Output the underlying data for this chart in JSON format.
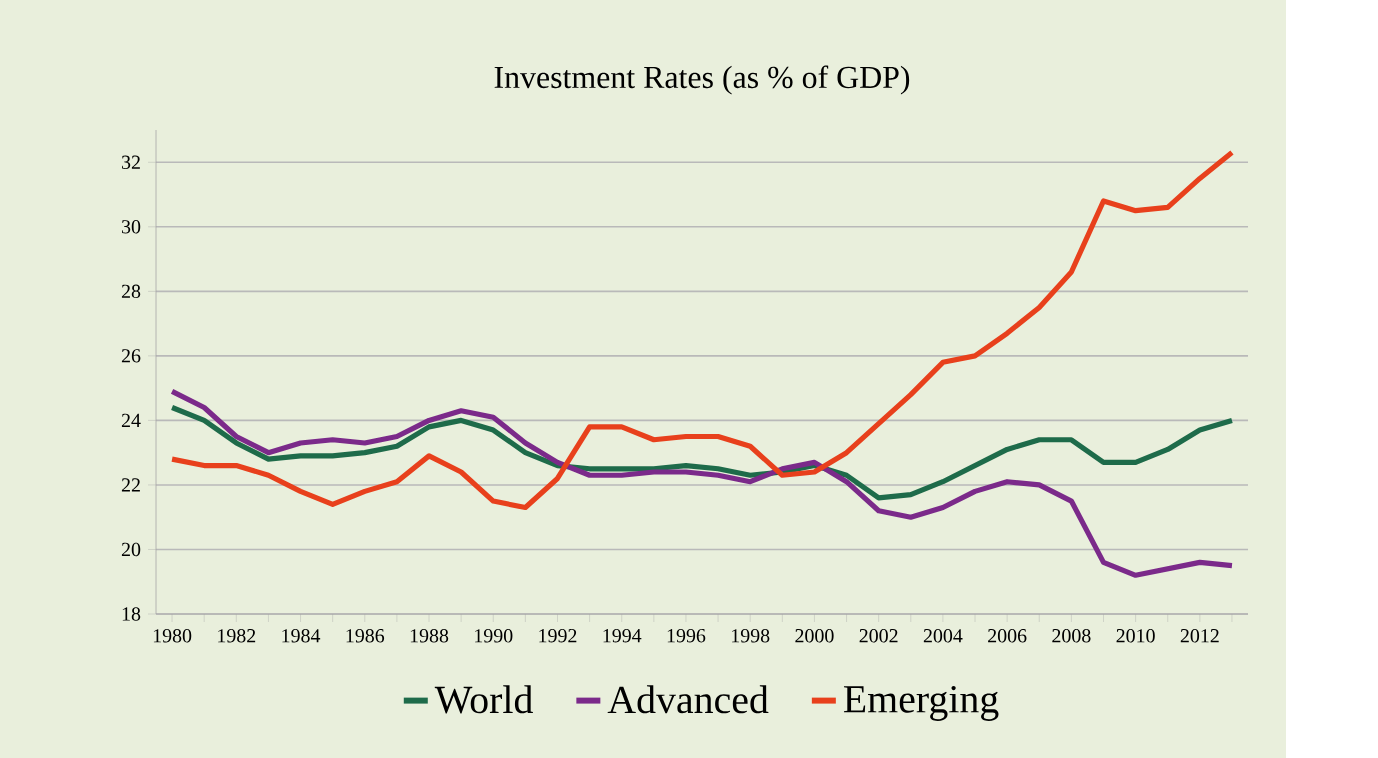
{
  "chart_data": {
    "type": "line",
    "title": "Investment Rates (as % of GDP)",
    "x": [
      1980,
      1981,
      1982,
      1983,
      1984,
      1985,
      1986,
      1987,
      1988,
      1989,
      1990,
      1991,
      1992,
      1993,
      1994,
      1995,
      1996,
      1997,
      1998,
      1999,
      2000,
      2001,
      2002,
      2003,
      2004,
      2005,
      2006,
      2007,
      2008,
      2009,
      2010,
      2011,
      2012,
      2013
    ],
    "series": [
      {
        "name": "World",
        "color": "#1e6b4a",
        "values": [
          24.4,
          24.0,
          23.3,
          22.8,
          22.9,
          22.9,
          23.0,
          23.2,
          23.8,
          24.0,
          23.7,
          23.0,
          22.6,
          22.5,
          22.5,
          22.5,
          22.6,
          22.5,
          22.3,
          22.4,
          22.6,
          22.3,
          21.6,
          21.7,
          22.1,
          22.6,
          23.1,
          23.4,
          23.4,
          22.7,
          22.7,
          23.1,
          23.7,
          24.0
        ]
      },
      {
        "name": "Advanced",
        "color": "#7b2a8a",
        "values": [
          24.9,
          24.4,
          23.5,
          23.0,
          23.3,
          23.4,
          23.3,
          23.5,
          24.0,
          24.3,
          24.1,
          23.3,
          22.7,
          22.3,
          22.3,
          22.4,
          22.4,
          22.3,
          22.1,
          22.5,
          22.7,
          22.1,
          21.2,
          21.0,
          21.3,
          21.8,
          22.1,
          22.0,
          21.5,
          19.6,
          19.2,
          19.4,
          19.6,
          19.5
        ]
      },
      {
        "name": "Emerging",
        "color": "#e8401c",
        "values": [
          22.8,
          22.6,
          22.6,
          22.3,
          21.8,
          21.4,
          21.8,
          22.1,
          22.9,
          22.4,
          21.5,
          21.3,
          22.2,
          23.8,
          23.8,
          23.4,
          23.5,
          23.5,
          23.2,
          22.3,
          22.4,
          23.0,
          23.9,
          24.8,
          25.8,
          26.0,
          26.7,
          27.5,
          28.6,
          30.8,
          30.5,
          30.6,
          31.5,
          32.3
        ]
      }
    ],
    "xlim": [
      1979.5,
      2013.5
    ],
    "xticks": [
      1980,
      {
        "value": 1981,
        "label": null
      },
      1982,
      {
        "value": 1983,
        "label": null
      },
      1984,
      {
        "value": 1985,
        "label": null
      },
      1986,
      {
        "value": 1987,
        "label": null
      },
      1988,
      {
        "value": 1989,
        "label": null
      },
      1990,
      {
        "value": 1991,
        "label": null
      },
      1992,
      {
        "value": 1993,
        "label": null
      },
      1994,
      {
        "value": 1995,
        "label": null
      },
      1996,
      {
        "value": 1997,
        "label": null
      },
      1998,
      {
        "value": 1999,
        "label": null
      },
      2000,
      {
        "value": 2001,
        "label": null
      },
      2002,
      {
        "value": 2003,
        "label": null
      },
      2004,
      {
        "value": 2005,
        "label": null
      },
      2006,
      {
        "value": 2007,
        "label": null
      },
      2008,
      {
        "value": 2009,
        "label": null
      },
      2010,
      {
        "value": 2011,
        "label": null
      },
      2012,
      {
        "value": 2013,
        "label": null
      }
    ],
    "ylim": [
      18,
      33
    ],
    "yticks": [
      18,
      20,
      22,
      24,
      26,
      28,
      30,
      32
    ],
    "grid": "y",
    "legend": "bottom"
  }
}
